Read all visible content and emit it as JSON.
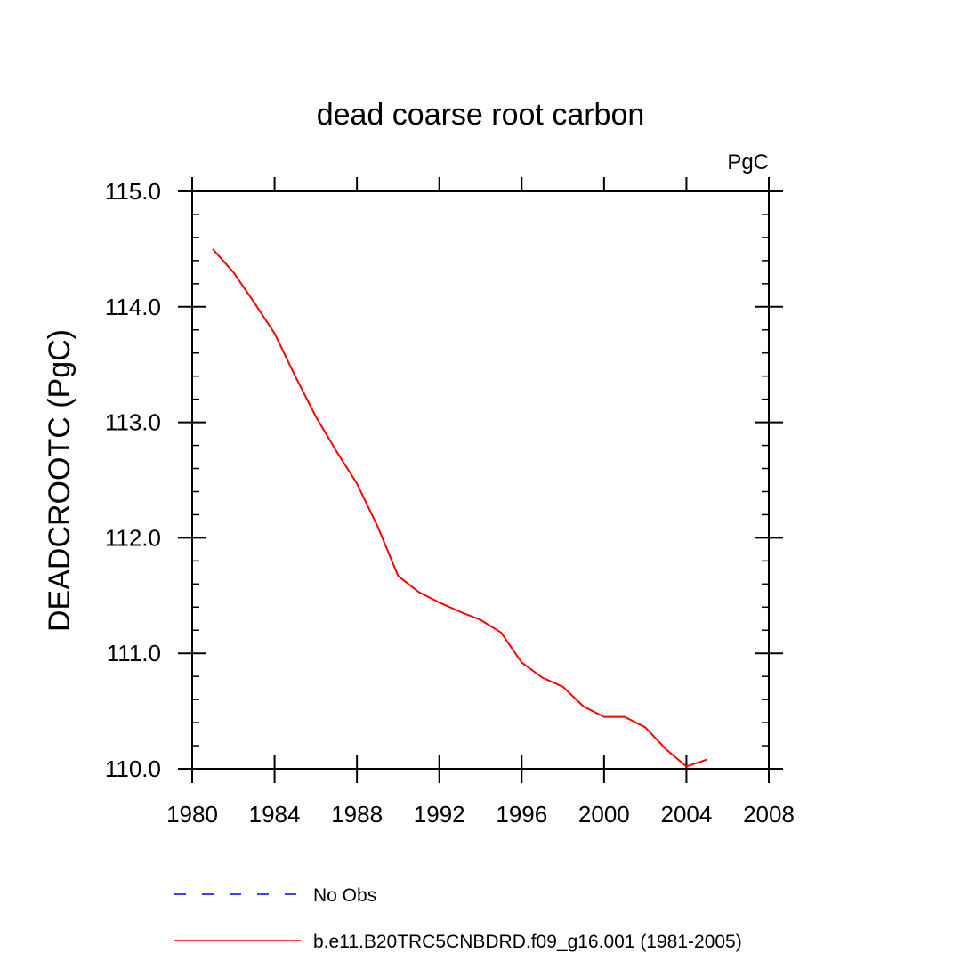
{
  "chart_data": {
    "type": "line",
    "title": "dead coarse root carbon",
    "units_label": "PgC",
    "xlabel": "",
    "ylabel": "DEADCROOTC  (PgC)",
    "xlim": [
      1980,
      2008
    ],
    "ylim": [
      110.0,
      115.0
    ],
    "x_ticks": [
      1980,
      1984,
      1988,
      1992,
      1996,
      2000,
      2004,
      2008
    ],
    "x_tick_labels": [
      "1980",
      "1984",
      "1988",
      "1992",
      "1996",
      "2000",
      "2004",
      "2008"
    ],
    "y_ticks": [
      110.0,
      111.0,
      112.0,
      113.0,
      114.0,
      115.0
    ],
    "y_tick_labels": [
      "110.0",
      "111.0",
      "112.0",
      "113.0",
      "114.0",
      "115.0"
    ],
    "series": [
      {
        "name": "b.e11.B20TRC5CNBDRD.f09_g16.001 (1981-2005)",
        "color": "#ff0000",
        "style": "solid",
        "x": [
          1981,
          1982,
          1983,
          1984,
          1985,
          1986,
          1987,
          1988,
          1989,
          1990,
          1991,
          1992,
          1993,
          1994,
          1995,
          1996,
          1997,
          1998,
          1999,
          2000,
          2001,
          2002,
          2003,
          2004,
          2005
        ],
        "y": [
          114.5,
          114.3,
          114.04,
          113.77,
          113.4,
          113.05,
          112.75,
          112.47,
          112.1,
          111.67,
          111.53,
          111.44,
          111.36,
          111.29,
          111.18,
          110.92,
          110.79,
          110.71,
          110.54,
          110.45,
          110.45,
          110.36,
          110.17,
          110.02,
          110.08
        ]
      }
    ],
    "legend": [
      {
        "label": "No Obs",
        "color": "#0000ff",
        "style": "dashed"
      },
      {
        "label": "b.e11.B20TRC5CNBDRD.f09_g16.001 (1981-2005)",
        "color": "#ff0000",
        "style": "solid"
      }
    ],
    "legend_position": "bottom"
  }
}
